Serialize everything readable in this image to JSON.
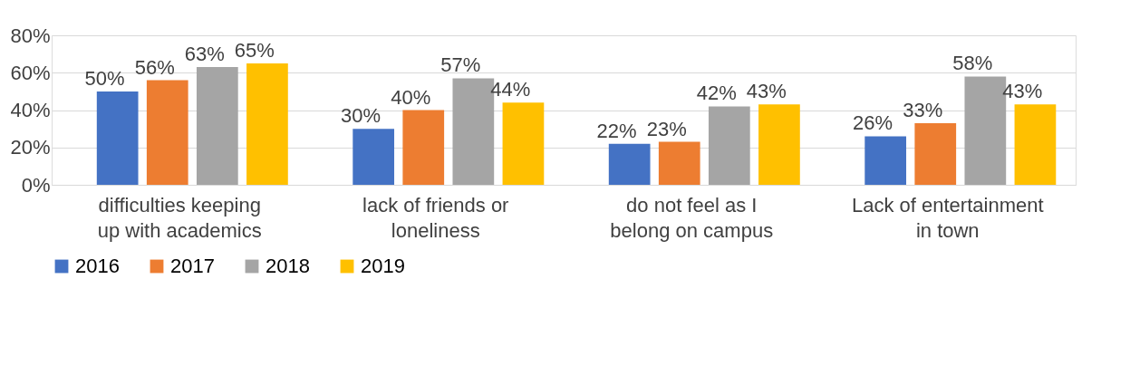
{
  "chart_data": {
    "type": "bar",
    "categories": [
      "difficulties keeping up with academics",
      "lack of friends or loneliness",
      "do not feel as I belong on campus",
      "Lack of entertainment in town"
    ],
    "series": [
      {
        "name": "2016",
        "color": "#4472c4",
        "values": [
          50,
          30,
          22,
          26
        ],
        "value_labels": [
          "50%",
          "30%",
          "22%",
          "26%"
        ]
      },
      {
        "name": "2017",
        "color": "#ed7d31",
        "values": [
          56,
          40,
          23,
          33
        ],
        "value_labels": [
          "56%",
          "40%",
          "23%",
          "33%"
        ]
      },
      {
        "name": "2018",
        "color": "#a5a5a5",
        "values": [
          63,
          57,
          42,
          58
        ],
        "value_labels": [
          "63%",
          "57%",
          "42%",
          "58%"
        ]
      },
      {
        "name": "2019",
        "color": "#ffc000",
        "values": [
          65,
          44,
          43,
          43
        ],
        "value_labels": [
          "65%",
          "44%",
          "43%",
          "43%"
        ]
      }
    ],
    "ylim": [
      0,
      80
    ],
    "yticks": [
      {
        "value": 0,
        "label": "0%"
      },
      {
        "value": 20,
        "label": "20%"
      },
      {
        "value": 40,
        "label": "40%"
      },
      {
        "value": 60,
        "label": "60%"
      },
      {
        "value": 80,
        "label": "80%"
      }
    ],
    "grid": "y",
    "legend": "bottom"
  }
}
